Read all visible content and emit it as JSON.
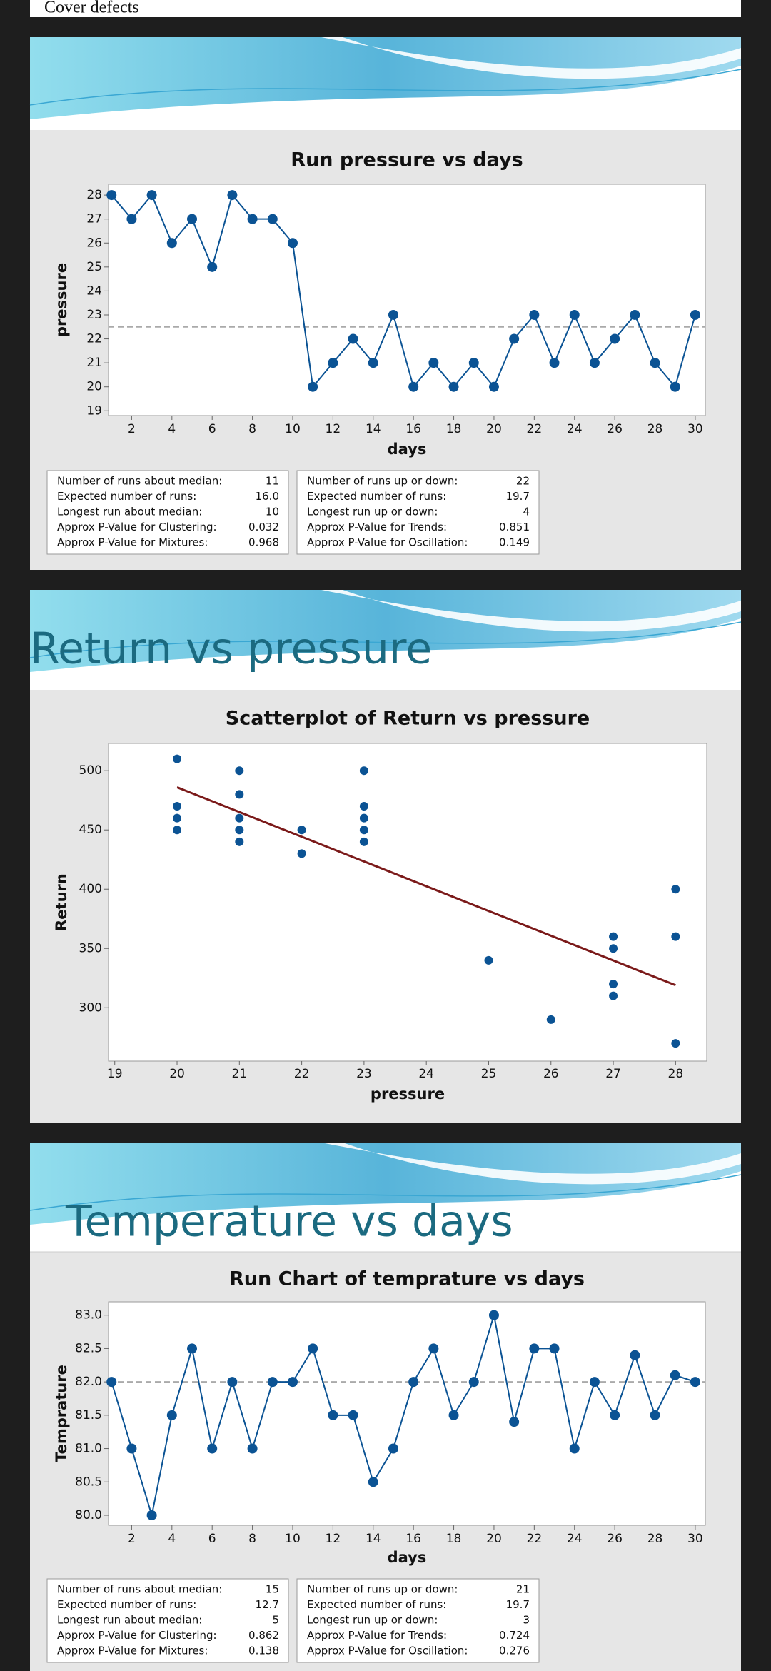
{
  "header": {
    "title": "Cover defects"
  },
  "slides": [
    {
      "title": "Return vs pressure"
    },
    {
      "title": "Temperature vs days"
    }
  ],
  "chart_data": [
    {
      "type": "line",
      "title": "Run pressure vs days",
      "x_label": "days",
      "y_label": "pressure",
      "x": [
        1,
        2,
        3,
        4,
        5,
        6,
        7,
        8,
        9,
        10,
        11,
        12,
        13,
        14,
        15,
        16,
        17,
        18,
        19,
        20,
        21,
        22,
        23,
        24,
        25,
        26,
        27,
        28,
        29,
        30
      ],
      "values": [
        28,
        27,
        28,
        26,
        27,
        25,
        28,
        27,
        27,
        26,
        20,
        21,
        22,
        21,
        23,
        20,
        21,
        20,
        21,
        20,
        22,
        23,
        21,
        23,
        21,
        22,
        23,
        21,
        20,
        23
      ],
      "color": "#0b5394",
      "reference_line": 22.5,
      "xlim": [
        0.85,
        30.5
      ],
      "xticks": [
        2,
        4,
        6,
        8,
        10,
        12,
        14,
        16,
        18,
        20,
        22,
        24,
        26,
        28,
        30
      ],
      "ylim": [
        18.8,
        28.45
      ],
      "yticks": [
        19,
        20,
        21,
        22,
        23,
        24,
        25,
        26,
        27,
        28
      ],
      "stats": [
        [
          {
            "label": "Number of runs about median:",
            "value": "11"
          },
          {
            "label": "Expected number of runs:",
            "value": "16.0"
          },
          {
            "label": "Longest run about median:",
            "value": "10"
          },
          {
            "label": "Approx P-Value for Clustering:",
            "value": "0.032"
          },
          {
            "label": "Approx P-Value for Mixtures:",
            "value": "0.968"
          }
        ],
        [
          {
            "label": "Number of runs up or down:",
            "value": "22"
          },
          {
            "label": "Expected number of runs:",
            "value": "19.7"
          },
          {
            "label": "Longest run up or down:",
            "value": "4"
          },
          {
            "label": "Approx P-Value for Trends:",
            "value": "0.851"
          },
          {
            "label": "Approx P-Value for Oscillation:",
            "value": "0.149"
          }
        ]
      ]
    },
    {
      "type": "scatter",
      "title": "Scatterplot of Return vs pressure",
      "x_label": "pressure",
      "y_label": "Return",
      "x": [
        20,
        20,
        20,
        20,
        21,
        21,
        21,
        21,
        21,
        22,
        22,
        23,
        23,
        23,
        23,
        23,
        25,
        26,
        27,
        27,
        27,
        27,
        28,
        28,
        28
      ],
      "values": [
        510,
        470,
        460,
        450,
        500,
        480,
        460,
        450,
        440,
        450,
        430,
        500,
        470,
        460,
        450,
        440,
        340,
        290,
        360,
        350,
        320,
        310,
        400,
        360,
        270
      ],
      "color": "#0b5394",
      "fit": {
        "x": [
          20,
          28
        ],
        "values": [
          486,
          319
        ],
        "color": "#7b1a1a"
      },
      "xlim": [
        18.9,
        28.5
      ],
      "xticks": [
        19,
        20,
        21,
        22,
        23,
        24,
        25,
        26,
        27,
        28
      ],
      "ylim": [
        255,
        523
      ],
      "yticks": [
        300,
        350,
        400,
        450,
        500
      ]
    },
    {
      "type": "line",
      "title": "Run Chart of temprature vs days",
      "x_label": "days",
      "y_label": "Temprature",
      "x": [
        1,
        2,
        3,
        4,
        5,
        6,
        7,
        8,
        9,
        10,
        11,
        12,
        13,
        14,
        15,
        16,
        17,
        18,
        19,
        20,
        21,
        22,
        23,
        24,
        25,
        26,
        27,
        28,
        29,
        30
      ],
      "values": [
        82,
        81,
        80,
        81.5,
        82.5,
        81,
        82,
        81,
        82,
        82,
        82.5,
        81.5,
        81.5,
        80.5,
        81,
        82,
        82.5,
        81.5,
        82,
        83,
        81.4,
        82.5,
        82.5,
        81,
        82,
        81.5,
        82.4,
        81.5,
        82.1,
        82
      ],
      "color": "#0b5394",
      "reference_line": 82,
      "xlim": [
        0.85,
        30.5
      ],
      "xticks": [
        2,
        4,
        6,
        8,
        10,
        12,
        14,
        16,
        18,
        20,
        22,
        24,
        26,
        28,
        30
      ],
      "ylim": [
        79.85,
        83.2
      ],
      "yticks": [
        {
          "value": 80,
          "label": "80.0"
        },
        {
          "value": 80.5,
          "label": "80.5"
        },
        {
          "value": 81,
          "label": "81.0"
        },
        {
          "value": 81.5,
          "label": "81.5"
        },
        {
          "value": 82,
          "label": "82.0"
        },
        {
          "value": 82.5,
          "label": "82.5"
        },
        {
          "value": 83,
          "label": "83.0"
        }
      ],
      "stats": [
        [
          {
            "label": "Number of runs about median:",
            "value": "15"
          },
          {
            "label": "Expected number of runs:",
            "value": "12.7"
          },
          {
            "label": "Longest run about median:",
            "value": "5"
          },
          {
            "label": "Approx P-Value for Clustering:",
            "value": "0.862"
          },
          {
            "label": "Approx P-Value for Mixtures:",
            "value": "0.138"
          }
        ],
        [
          {
            "label": "Number of runs up or down:",
            "value": "21"
          },
          {
            "label": "Expected number of runs:",
            "value": "19.7"
          },
          {
            "label": "Longest run up or down:",
            "value": "3"
          },
          {
            "label": "Approx P-Value for Trends:",
            "value": "0.724"
          },
          {
            "label": "Approx P-Value for Oscillation:",
            "value": "0.276"
          }
        ]
      ]
    }
  ]
}
